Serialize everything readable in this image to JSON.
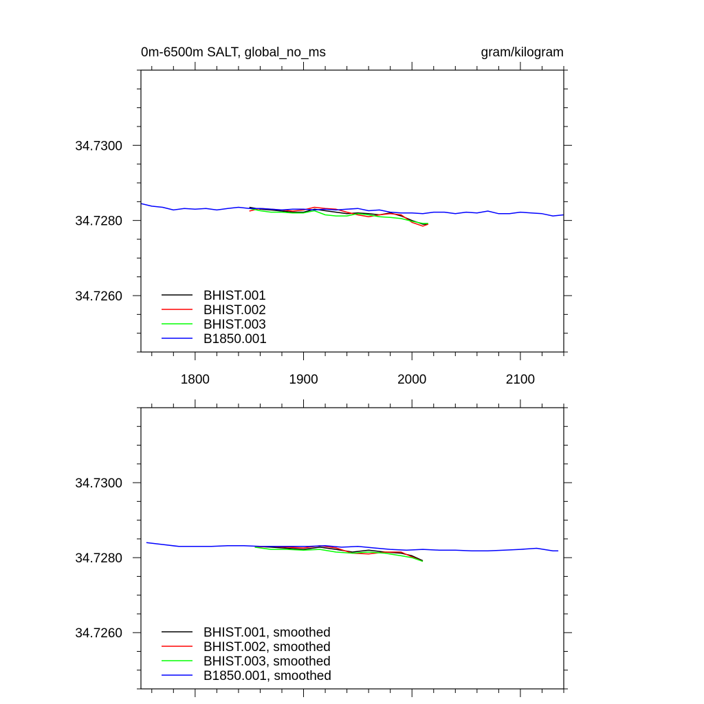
{
  "chart_data": [
    {
      "type": "line",
      "title_left": "0m-6500m SALT, global_no_ms",
      "title_right": "gram/kilogram",
      "xlim": [
        1750,
        2140
      ],
      "ylim": [
        34.7245,
        34.732
      ],
      "xticks": [
        "1800",
        "1900",
        "2000",
        "2100"
      ],
      "xtick_values": [
        1800,
        1900,
        2000,
        2100
      ],
      "yticks": [
        "34.7260",
        "34.7280",
        "34.7300"
      ],
      "ytick_values": [
        34.726,
        34.728,
        34.73
      ],
      "legend_position": "bottom-left",
      "series": [
        {
          "name": "BHIST.001",
          "color": "#000000",
          "x": [
            1850,
            1860,
            1870,
            1880,
            1890,
            1900,
            1910,
            1920,
            1930,
            1940,
            1950,
            1960,
            1970,
            1980,
            1990,
            2000,
            2010,
            2015
          ],
          "y": [
            34.72835,
            34.7283,
            34.72828,
            34.72825,
            34.72822,
            34.72822,
            34.7283,
            34.72826,
            34.72822,
            34.72818,
            34.7282,
            34.72818,
            34.72815,
            34.7282,
            34.72812,
            34.728,
            34.7279,
            34.7279
          ]
        },
        {
          "name": "BHIST.002",
          "color": "#ff0000",
          "x": [
            1850,
            1860,
            1870,
            1880,
            1890,
            1900,
            1910,
            1920,
            1930,
            1940,
            1950,
            1960,
            1970,
            1980,
            1990,
            2000,
            2010,
            2015
          ],
          "y": [
            34.72825,
            34.72832,
            34.7283,
            34.72828,
            34.72825,
            34.72828,
            34.72835,
            34.72832,
            34.7283,
            34.72822,
            34.72815,
            34.7281,
            34.72815,
            34.72818,
            34.72815,
            34.72795,
            34.72785,
            34.7279
          ]
        },
        {
          "name": "BHIST.003",
          "color": "#00ff00",
          "x": [
            1850,
            1860,
            1870,
            1880,
            1890,
            1900,
            1910,
            1920,
            1930,
            1940,
            1950,
            1960,
            1970,
            1980,
            1990,
            2000,
            2010,
            2015
          ],
          "y": [
            34.72832,
            34.72826,
            34.72822,
            34.72822,
            34.7282,
            34.7282,
            34.72826,
            34.72815,
            34.72812,
            34.72812,
            34.72818,
            34.72815,
            34.7281,
            34.72808,
            34.72805,
            34.72798,
            34.72792,
            34.72792
          ]
        },
        {
          "name": "B1850.001",
          "color": "#0000ff",
          "x": [
            1750,
            1760,
            1770,
            1780,
            1790,
            1800,
            1810,
            1820,
            1830,
            1840,
            1850,
            1860,
            1870,
            1880,
            1890,
            1900,
            1910,
            1920,
            1930,
            1940,
            1950,
            1960,
            1970,
            1980,
            1990,
            2000,
            2010,
            2020,
            2030,
            2040,
            2050,
            2060,
            2070,
            2080,
            2090,
            2100,
            2110,
            2120,
            2130,
            2140
          ],
          "y": [
            34.72845,
            34.72838,
            34.72835,
            34.72828,
            34.72832,
            34.7283,
            34.72832,
            34.72828,
            34.72832,
            34.72835,
            34.72832,
            34.72832,
            34.7283,
            34.72828,
            34.7283,
            34.7283,
            34.72828,
            34.7283,
            34.72828,
            34.7283,
            34.72832,
            34.72826,
            34.72828,
            34.72822,
            34.7282,
            34.7282,
            34.72818,
            34.72822,
            34.72822,
            34.72818,
            34.72822,
            34.7282,
            34.72825,
            34.72818,
            34.72818,
            34.72822,
            34.7282,
            34.72818,
            34.72812,
            34.72815
          ]
        }
      ]
    },
    {
      "type": "line",
      "xlim": [
        1750,
        2140
      ],
      "ylim": [
        34.7245,
        34.732
      ],
      "yticks": [
        "34.7260",
        "34.7280",
        "34.7300"
      ],
      "ytick_values": [
        34.726,
        34.728,
        34.73
      ],
      "xtick_values": [
        1800,
        1900,
        2000,
        2100
      ],
      "legend_position": "bottom-left",
      "series": [
        {
          "name": "BHIST.001, smoothed",
          "color": "#000000",
          "x": [
            1855,
            1870,
            1885,
            1900,
            1915,
            1930,
            1945,
            1960,
            1975,
            1990,
            2000,
            2010
          ],
          "y": [
            34.7283,
            34.72828,
            34.72825,
            34.72822,
            34.72828,
            34.72822,
            34.72815,
            34.7282,
            34.72815,
            34.72812,
            34.72805,
            34.72792
          ]
        },
        {
          "name": "BHIST.002, smoothed",
          "color": "#ff0000",
          "x": [
            1855,
            1870,
            1885,
            1900,
            1915,
            1930,
            1945,
            1960,
            1975,
            1990,
            2000,
            2010
          ],
          "y": [
            34.72828,
            34.7283,
            34.72828,
            34.72826,
            34.72832,
            34.72826,
            34.72812,
            34.7281,
            34.72815,
            34.72815,
            34.72802,
            34.7279
          ]
        },
        {
          "name": "BHIST.003, smoothed",
          "color": "#00ff00",
          "x": [
            1855,
            1870,
            1885,
            1900,
            1915,
            1930,
            1945,
            1960,
            1975,
            1990,
            2000,
            2010
          ],
          "y": [
            34.72828,
            34.72822,
            34.72822,
            34.7282,
            34.72822,
            34.72815,
            34.72812,
            34.72815,
            34.72812,
            34.72805,
            34.728,
            34.7279
          ]
        },
        {
          "name": "B1850.001, smoothed",
          "color": "#0000ff",
          "x": [
            1755,
            1770,
            1785,
            1800,
            1815,
            1830,
            1845,
            1860,
            1875,
            1890,
            1905,
            1920,
            1935,
            1950,
            1965,
            1980,
            1995,
            2010,
            2025,
            2040,
            2055,
            2070,
            2085,
            2100,
            2115,
            2130,
            2135
          ],
          "y": [
            34.7284,
            34.72835,
            34.7283,
            34.7283,
            34.7283,
            34.72832,
            34.72832,
            34.7283,
            34.7283,
            34.7283,
            34.7283,
            34.72832,
            34.72828,
            34.7283,
            34.72826,
            34.72822,
            34.7282,
            34.72822,
            34.7282,
            34.7282,
            34.72818,
            34.72818,
            34.7282,
            34.72822,
            34.72825,
            34.72818,
            34.72818
          ]
        }
      ]
    }
  ]
}
